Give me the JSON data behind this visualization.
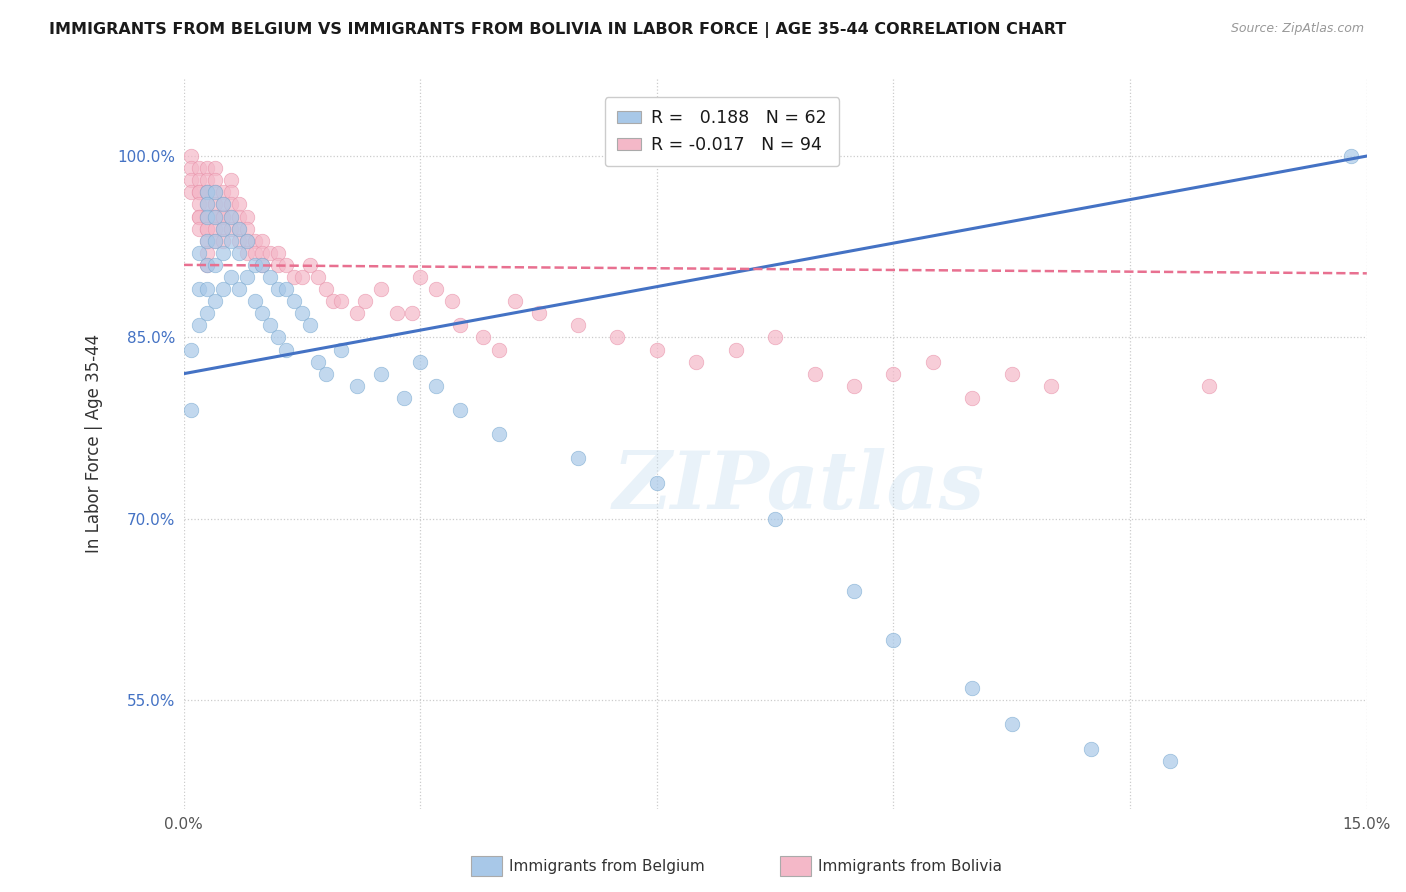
{
  "title": "IMMIGRANTS FROM BELGIUM VS IMMIGRANTS FROM BOLIVIA IN LABOR FORCE | AGE 35-44 CORRELATION CHART",
  "source": "Source: ZipAtlas.com",
  "ylabel": "In Labor Force | Age 35-44",
  "x_min": 0.0,
  "x_max": 0.15,
  "y_min": 0.46,
  "y_max": 1.065,
  "x_ticks": [
    0.0,
    0.03,
    0.06,
    0.09,
    0.12,
    0.15
  ],
  "x_tick_labels": [
    "0.0%",
    "",
    "",
    "",
    "",
    "15.0%"
  ],
  "y_ticks": [
    0.55,
    0.7,
    0.85,
    1.0
  ],
  "y_tick_labels": [
    "55.0%",
    "70.0%",
    "85.0%",
    "100.0%"
  ],
  "belgium_color": "#a8c8e8",
  "bolivia_color": "#f4b8c8",
  "belgium_edge": "#7aaad0",
  "bolivia_edge": "#e890a8",
  "belgium_line_color": "#4472c4",
  "bolivia_line_color": "#e87090",
  "R_belgium": 0.188,
  "N_belgium": 62,
  "R_bolivia": -0.017,
  "N_bolivia": 94,
  "legend_label_belgium": "Immigrants from Belgium",
  "legend_label_bolivia": "Immigrants from Bolivia",
  "watermark": "ZIPatlas",
  "belgium_line_x0": 0.0,
  "belgium_line_y0": 0.82,
  "belgium_line_x1": 0.15,
  "belgium_line_y1": 1.0,
  "bolivia_line_x0": 0.0,
  "bolivia_line_y0": 0.91,
  "bolivia_line_x1": 0.15,
  "bolivia_line_y1": 0.903,
  "belgium_x": [
    0.001,
    0.001,
    0.002,
    0.002,
    0.002,
    0.003,
    0.003,
    0.003,
    0.003,
    0.003,
    0.003,
    0.003,
    0.004,
    0.004,
    0.004,
    0.004,
    0.004,
    0.005,
    0.005,
    0.005,
    0.005,
    0.006,
    0.006,
    0.006,
    0.007,
    0.007,
    0.007,
    0.008,
    0.008,
    0.009,
    0.009,
    0.01,
    0.01,
    0.011,
    0.011,
    0.012,
    0.012,
    0.013,
    0.013,
    0.014,
    0.015,
    0.016,
    0.017,
    0.018,
    0.02,
    0.022,
    0.025,
    0.028,
    0.03,
    0.032,
    0.035,
    0.04,
    0.05,
    0.06,
    0.075,
    0.085,
    0.09,
    0.1,
    0.105,
    0.115,
    0.125,
    0.148
  ],
  "belgium_y": [
    0.84,
    0.79,
    0.92,
    0.89,
    0.86,
    0.97,
    0.96,
    0.95,
    0.93,
    0.91,
    0.89,
    0.87,
    0.97,
    0.95,
    0.93,
    0.91,
    0.88,
    0.96,
    0.94,
    0.92,
    0.89,
    0.95,
    0.93,
    0.9,
    0.94,
    0.92,
    0.89,
    0.93,
    0.9,
    0.91,
    0.88,
    0.91,
    0.87,
    0.9,
    0.86,
    0.89,
    0.85,
    0.89,
    0.84,
    0.88,
    0.87,
    0.86,
    0.83,
    0.82,
    0.84,
    0.81,
    0.82,
    0.8,
    0.83,
    0.81,
    0.79,
    0.77,
    0.75,
    0.73,
    0.7,
    0.64,
    0.6,
    0.56,
    0.53,
    0.51,
    0.5,
    1.0
  ],
  "bolivia_x": [
    0.001,
    0.001,
    0.001,
    0.001,
    0.002,
    0.002,
    0.002,
    0.002,
    0.002,
    0.002,
    0.002,
    0.002,
    0.003,
    0.003,
    0.003,
    0.003,
    0.003,
    0.003,
    0.003,
    0.003,
    0.003,
    0.003,
    0.003,
    0.003,
    0.004,
    0.004,
    0.004,
    0.004,
    0.004,
    0.004,
    0.004,
    0.004,
    0.005,
    0.005,
    0.005,
    0.005,
    0.005,
    0.005,
    0.006,
    0.006,
    0.006,
    0.006,
    0.006,
    0.007,
    0.007,
    0.007,
    0.007,
    0.008,
    0.008,
    0.008,
    0.008,
    0.009,
    0.009,
    0.01,
    0.01,
    0.01,
    0.011,
    0.012,
    0.012,
    0.013,
    0.014,
    0.015,
    0.016,
    0.017,
    0.018,
    0.019,
    0.02,
    0.022,
    0.023,
    0.025,
    0.027,
    0.029,
    0.03,
    0.032,
    0.034,
    0.035,
    0.038,
    0.04,
    0.042,
    0.045,
    0.05,
    0.055,
    0.06,
    0.065,
    0.07,
    0.075,
    0.08,
    0.085,
    0.09,
    0.095,
    0.1,
    0.105,
    0.11,
    0.13
  ],
  "bolivia_y": [
    1.0,
    0.99,
    0.98,
    0.97,
    0.99,
    0.98,
    0.97,
    0.97,
    0.96,
    0.95,
    0.95,
    0.94,
    0.99,
    0.98,
    0.97,
    0.97,
    0.96,
    0.95,
    0.95,
    0.94,
    0.94,
    0.93,
    0.92,
    0.91,
    0.99,
    0.98,
    0.97,
    0.96,
    0.95,
    0.95,
    0.94,
    0.93,
    0.97,
    0.96,
    0.95,
    0.95,
    0.94,
    0.93,
    0.98,
    0.97,
    0.96,
    0.95,
    0.94,
    0.96,
    0.95,
    0.94,
    0.93,
    0.95,
    0.94,
    0.93,
    0.92,
    0.93,
    0.92,
    0.93,
    0.92,
    0.91,
    0.92,
    0.92,
    0.91,
    0.91,
    0.9,
    0.9,
    0.91,
    0.9,
    0.89,
    0.88,
    0.88,
    0.87,
    0.88,
    0.89,
    0.87,
    0.87,
    0.9,
    0.89,
    0.88,
    0.86,
    0.85,
    0.84,
    0.88,
    0.87,
    0.86,
    0.85,
    0.84,
    0.83,
    0.84,
    0.85,
    0.82,
    0.81,
    0.82,
    0.83,
    0.8,
    0.82,
    0.81,
    0.81
  ]
}
